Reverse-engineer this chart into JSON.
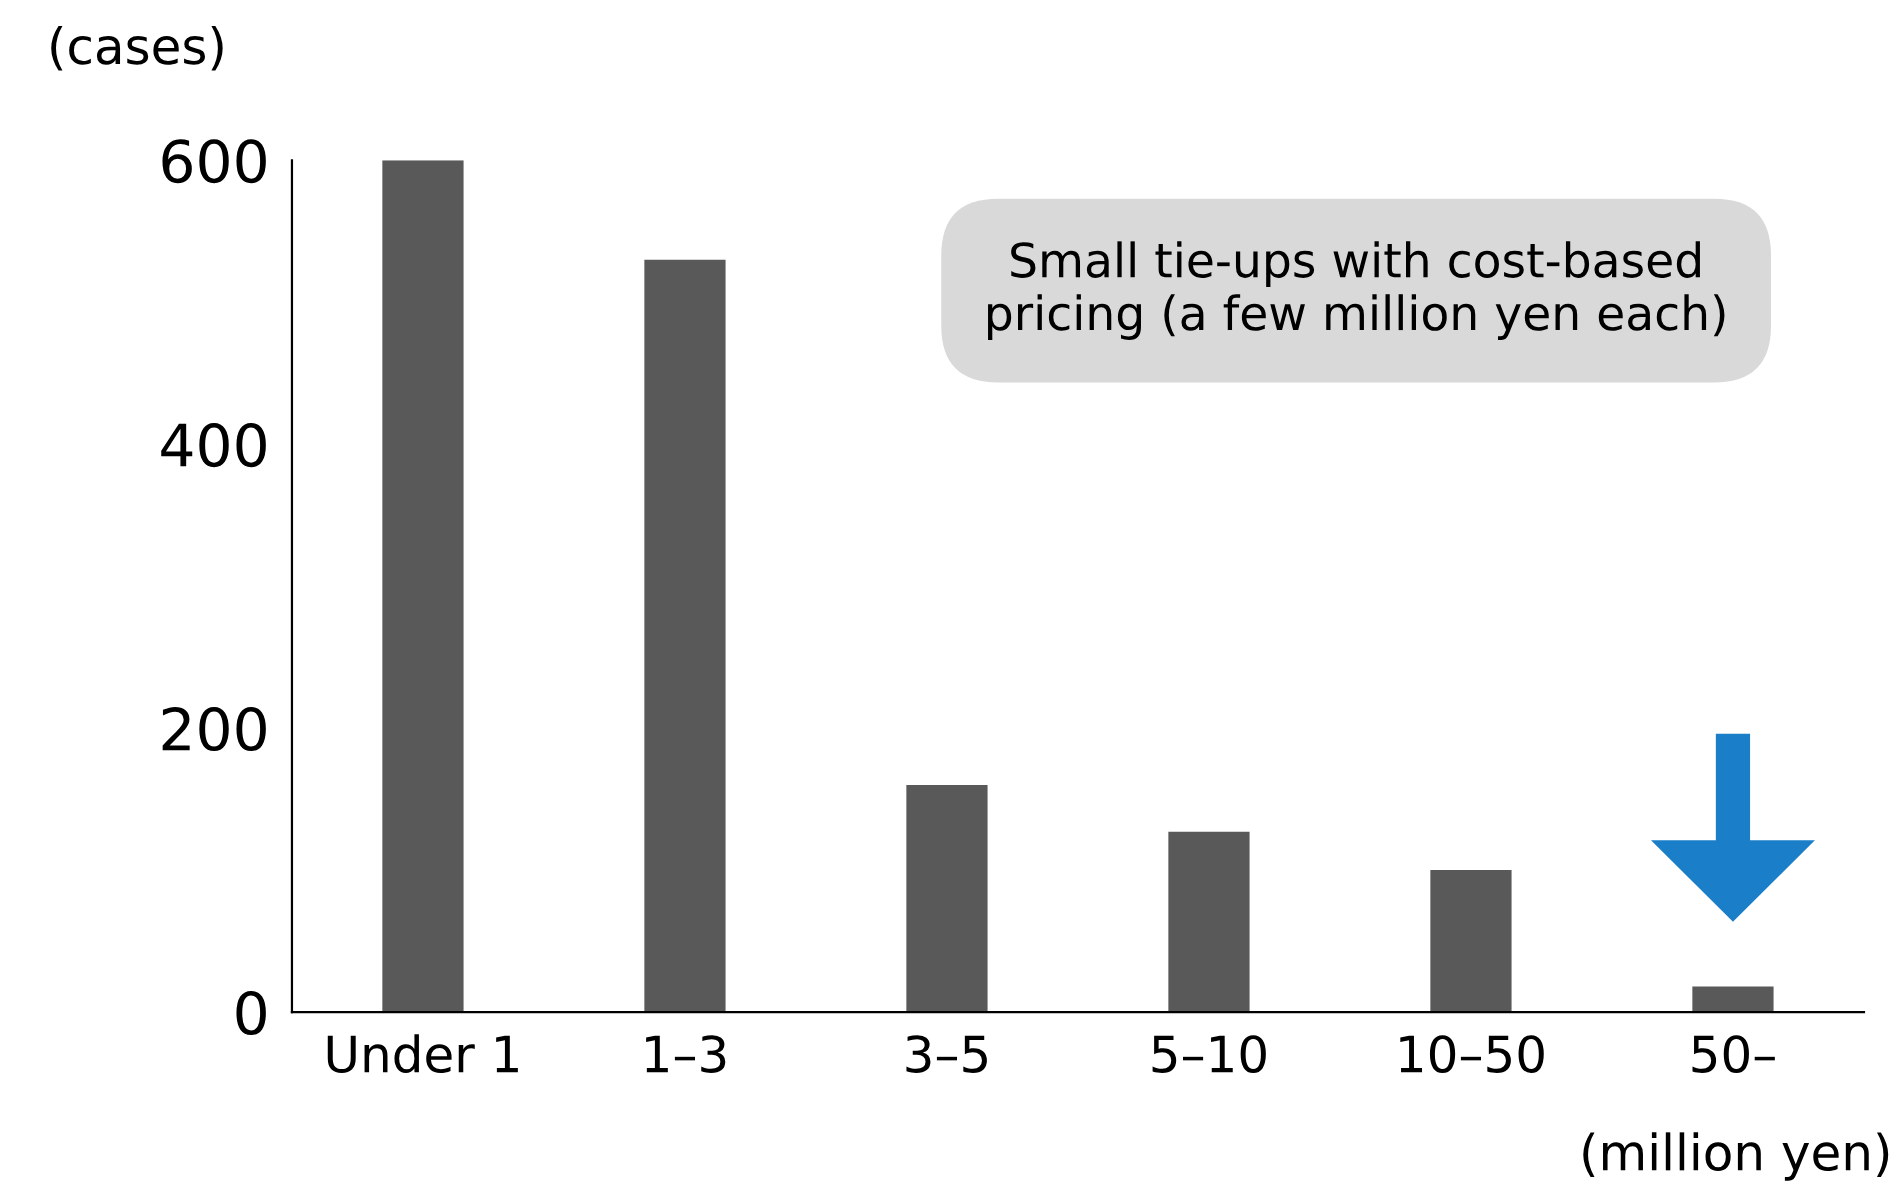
{
  "chart_data": {
    "type": "bar",
    "ylabel": "(cases)",
    "xlabel": "(million yen)",
    "categories": [
      "Under 1",
      "1–3",
      "3–5",
      "5–10",
      "10–50",
      "50–"
    ],
    "values": [
      600,
      530,
      160,
      127,
      100,
      18
    ],
    "color": "#595959",
    "ylim": [
      0,
      600
    ],
    "yticks": [
      0,
      200,
      400,
      600
    ],
    "grid": false,
    "legend": false,
    "annotations": [
      "Small tie-ups with cost-based\npricing (a few million yen each)"
    ]
  }
}
